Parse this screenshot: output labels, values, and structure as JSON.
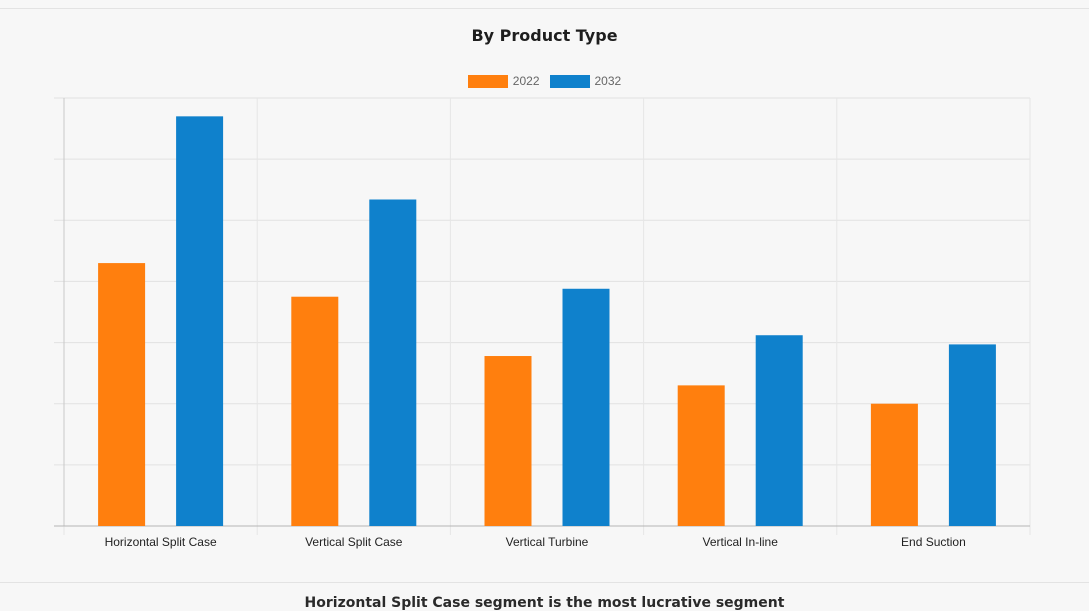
{
  "chart_data": {
    "type": "bar",
    "title": "By Product Type",
    "categories": [
      "Horizontal Split Case",
      "Vertical Split Case",
      "Vertical Turbine",
      "Vertical In-line",
      "End Suction"
    ],
    "series": [
      {
        "name": "2022",
        "color": "#ff7f0e",
        "values": [
          4.3,
          3.75,
          2.78,
          2.3,
          2.0
        ]
      },
      {
        "name": "2032",
        "color": "#0f81cc",
        "values": [
          6.7,
          5.34,
          3.88,
          3.12,
          2.97
        ]
      }
    ],
    "ylim": [
      0,
      7
    ],
    "grid": true,
    "y_tick_labels_shown": false,
    "legend_position": "top-center",
    "xlabel": "",
    "ylabel": ""
  },
  "footer": {
    "text": "Horizontal Split Case segment is the most lucrative segment"
  }
}
